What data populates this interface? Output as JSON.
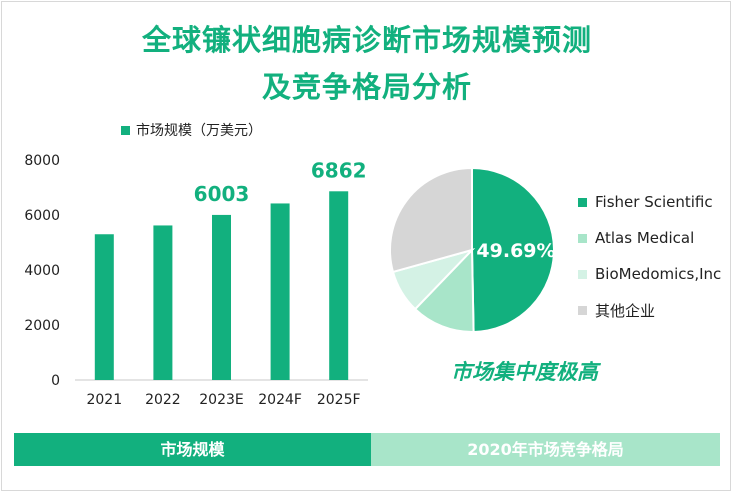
{
  "title": {
    "line1": "全球镰状细胞病诊断市场规模预测",
    "line2": "及竞争格局分析"
  },
  "colors": {
    "brand": "#12b07e",
    "light_green": "#a8e5c9",
    "pale_green": "#d4f2e5",
    "grey": "#d6d6d6"
  },
  "chart_data": [
    {
      "type": "bar",
      "legend": "市场规模（万美元）",
      "categories": [
        "2021",
        "2022",
        "2023E",
        "2024F",
        "2025F"
      ],
      "values": [
        5300,
        5620,
        6003,
        6420,
        6862
      ],
      "data_labels": [
        "",
        "",
        "6003",
        "",
        "6862"
      ],
      "yticks": [
        "0",
        "2000",
        "4000",
        "6000",
        "8000"
      ],
      "ylim": [
        0,
        8000
      ],
      "grid": false
    },
    {
      "type": "pie",
      "labels": [
        "Fisher Scientific",
        "Atlas Medical",
        "BioMedomics,Inc",
        "其他企业"
      ],
      "values": [
        49.69,
        12.5,
        8.5,
        29.31
      ],
      "colors": [
        "#12b07e",
        "#a8e5c9",
        "#d4f2e5",
        "#d6d6d6"
      ],
      "data_label": "49.69%"
    }
  ],
  "conclusion": "市场集中度极高",
  "footer": {
    "left": "市场规模",
    "right": "2020年市场竞争格局"
  }
}
